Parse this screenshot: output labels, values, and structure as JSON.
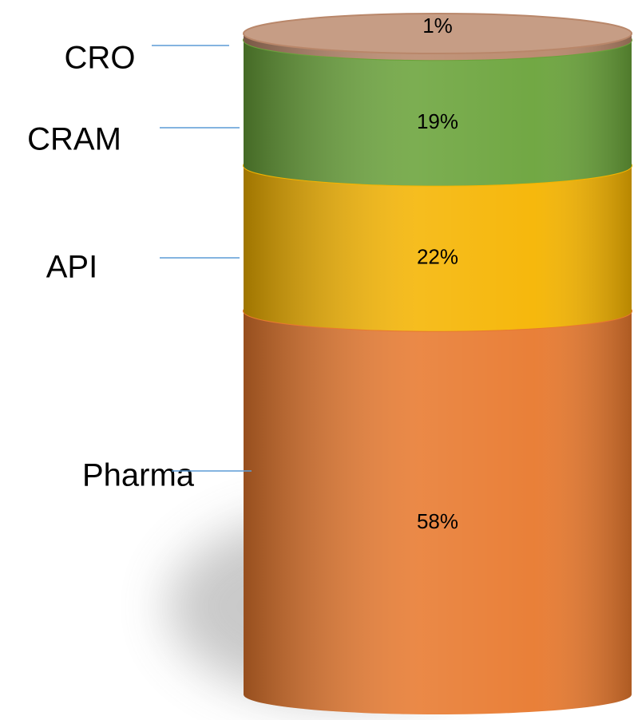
{
  "chart_data": {
    "type": "stacked-cylinder",
    "series": [
      {
        "name": "Pharma",
        "color": "#e8792e",
        "values": [
          58
        ],
        "value_labels": [
          "58%"
        ]
      },
      {
        "name": "API",
        "color": "#f5b400",
        "values": [
          22
        ],
        "value_labels": [
          "22%"
        ]
      },
      {
        "name": "CRAM",
        "color": "#6aa33a",
        "values": [
          19
        ],
        "value_labels": [
          "19%"
        ]
      },
      {
        "name": "CRO",
        "color": "#b9876a",
        "values": [
          1
        ],
        "value_labels": [
          "1%"
        ]
      }
    ]
  }
}
